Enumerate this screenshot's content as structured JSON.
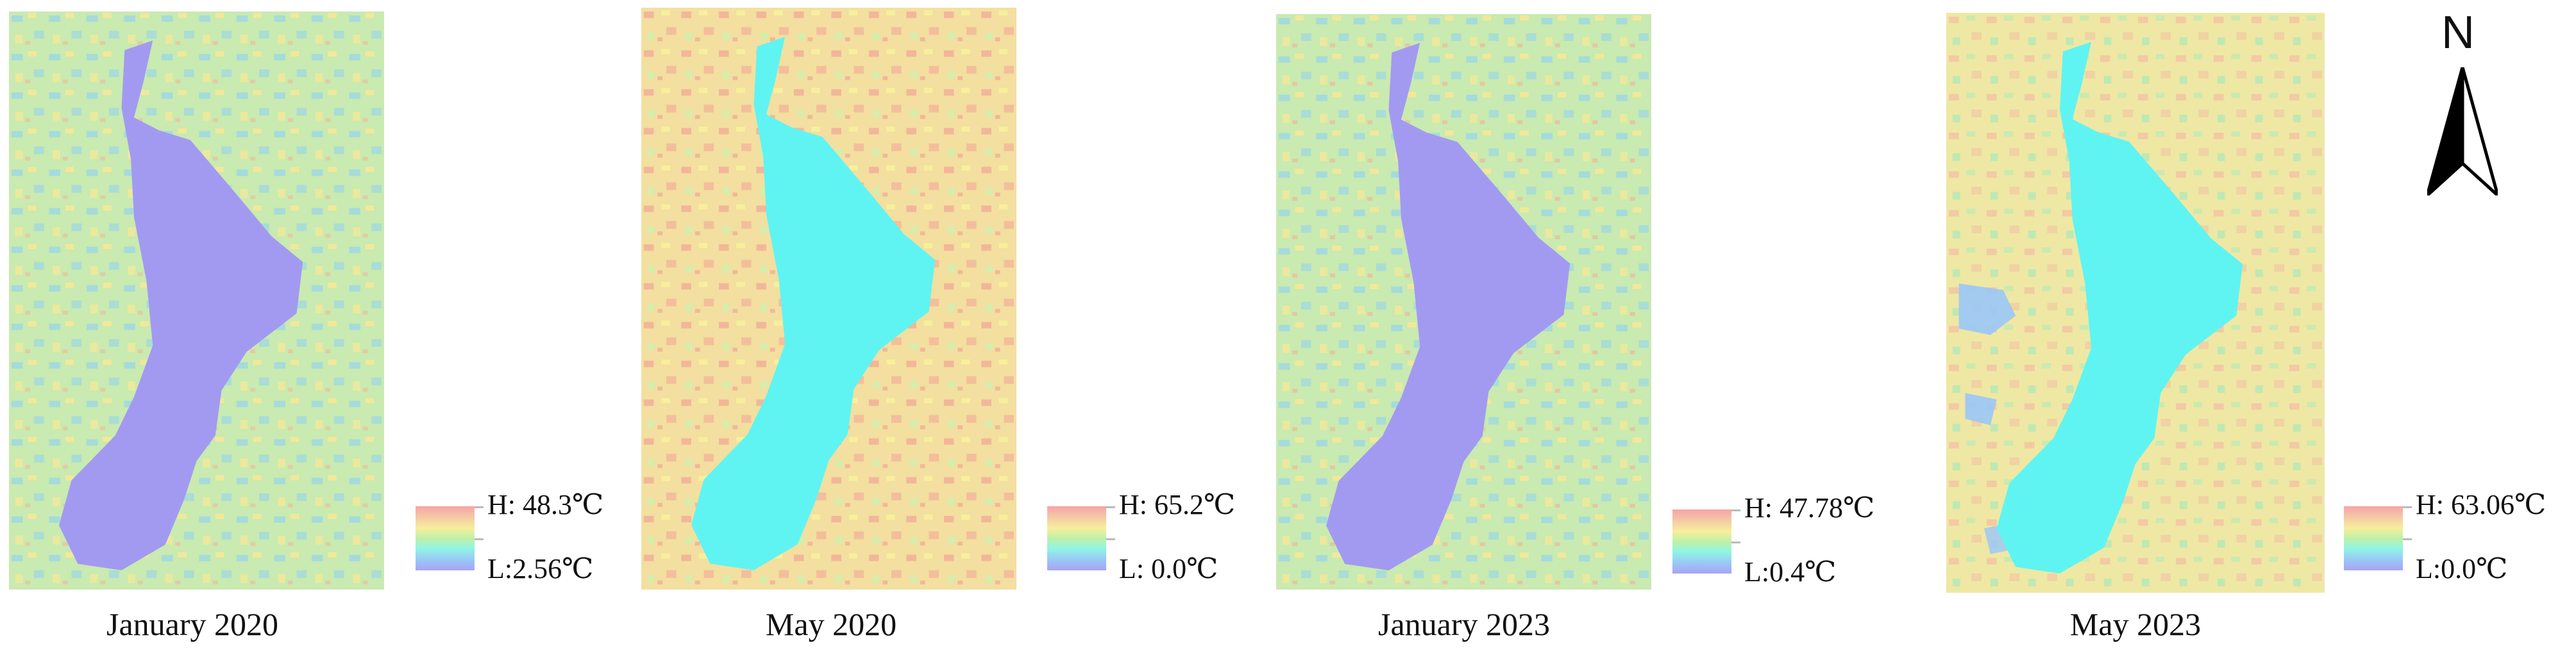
{
  "panels": [
    {
      "caption": "January 2020",
      "legend_high": "H: 48.3℃",
      "legend_low": "L:2.56℃",
      "lake_color": "#a29af0",
      "land_base": "#c9eab0"
    },
    {
      "caption": "May 2020",
      "legend_high": "H: 65.2℃",
      "legend_low": "L: 0.0℃",
      "lake_color": "#5ff4f2",
      "land_base": "#f3dfa0"
    },
    {
      "caption": "January 2023",
      "legend_high": "H: 47.78℃",
      "legend_low": "L:0.4℃",
      "lake_color": "#a29af0",
      "land_base": "#c9eab0"
    },
    {
      "caption": "May 2023",
      "legend_high": "H: 63.06℃",
      "legend_low": "L:0.0℃",
      "lake_color": "#5ff4f2",
      "land_base": "#eee8a4"
    }
  ],
  "north_arrow": {
    "label": "N",
    "icon": "north-arrow-icon"
  },
  "colors": {
    "ramp": [
      "#f7a3a8",
      "#f3c7a5",
      "#f7ef9c",
      "#bff0a8",
      "#8ff5e4",
      "#9ac6f7",
      "#a9a3f5"
    ],
    "cold_land": "#9cd7e6",
    "hot_land": "#f2b79a"
  }
}
